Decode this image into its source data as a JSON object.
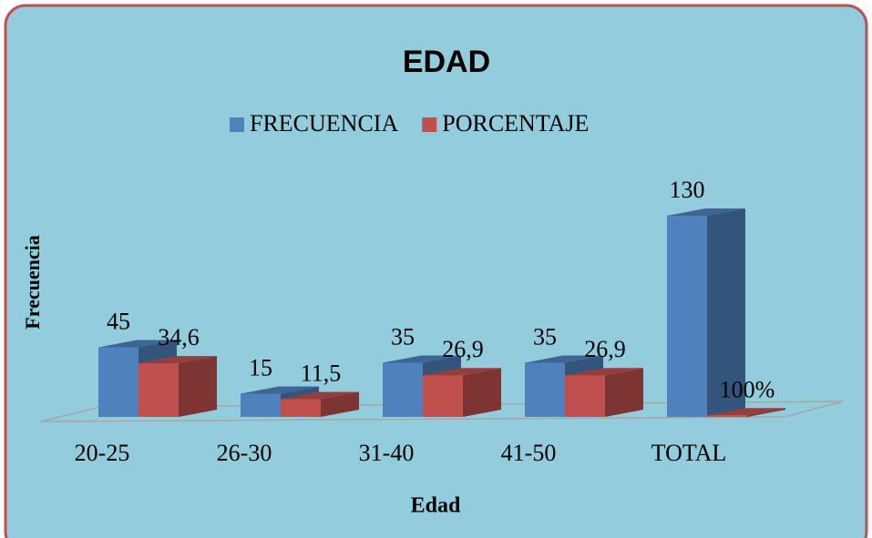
{
  "chart_data": {
    "type": "bar3d",
    "title": "EDAD",
    "categories": [
      "20-25",
      "26-30",
      "31-40",
      "41-50",
      "TOTAL"
    ],
    "x_label": "Edad",
    "y_label": "Frecuencia",
    "series": [
      {
        "name": "FRECUENCIA",
        "color": "#4f81bd",
        "values": [
          45,
          15,
          35,
          35,
          130
        ]
      },
      {
        "name": "PORCENTAJE",
        "color": "#c0504d",
        "values": [
          34.6,
          11.5,
          26.9,
          26.9,
          1
        ],
        "value_labels": [
          "34,6",
          "11,5",
          "26,9",
          "26,9",
          "100%"
        ]
      }
    ]
  }
}
